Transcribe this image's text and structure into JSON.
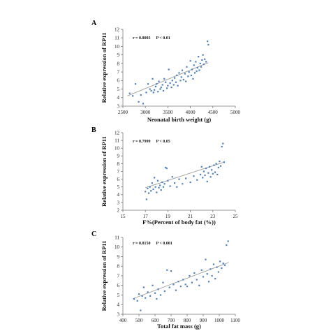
{
  "colors": {
    "point": "#4f81bd",
    "axis": "#7a7a7a",
    "trend": "#9a9a9a"
  },
  "chart_data": [
    {
      "type": "scatter",
      "panel": "A",
      "stats_r": "r = 0.8003",
      "stats_p": "P < 0.01",
      "xlabel": "Neonatal birth weight (g)",
      "ylabel": "Relative expression of RP11",
      "xlim": [
        2500,
        5000
      ],
      "ylim": [
        3,
        12
      ],
      "xticks": [
        "2500",
        "3000",
        "3500",
        "4000",
        "4500",
        "5000"
      ],
      "yticks": [
        "3",
        "4",
        "5",
        "6",
        "7",
        "8",
        "9",
        "10",
        "11",
        "12"
      ],
      "trendline": [
        [
          2600,
          4.2
        ],
        [
          4400,
          8.1
        ]
      ],
      "points": [
        [
          2650,
          4.5
        ],
        [
          2720,
          4.2
        ],
        [
          2780,
          5.6
        ],
        [
          2850,
          3.5
        ],
        [
          2900,
          4.3
        ],
        [
          2950,
          3.3
        ],
        [
          3020,
          4.6
        ],
        [
          3060,
          5.6
        ],
        [
          3100,
          5.0
        ],
        [
          3130,
          4.8
        ],
        [
          3160,
          6.2
        ],
        [
          3180,
          4.6
        ],
        [
          3200,
          4.9
        ],
        [
          3230,
          5.3
        ],
        [
          3250,
          5.6
        ],
        [
          3280,
          4.7
        ],
        [
          3300,
          5.9
        ],
        [
          3330,
          5.0
        ],
        [
          3350,
          5.2
        ],
        [
          3380,
          5.5
        ],
        [
          3400,
          4.8
        ],
        [
          3420,
          6.2
        ],
        [
          3450,
          5.8
        ],
        [
          3480,
          5.1
        ],
        [
          3500,
          5.4
        ],
        [
          3520,
          7.3
        ],
        [
          3550,
          5.7
        ],
        [
          3580,
          5.2
        ],
        [
          3600,
          6.0
        ],
        [
          3630,
          5.5
        ],
        [
          3650,
          6.3
        ],
        [
          3680,
          5.8
        ],
        [
          3700,
          6.6
        ],
        [
          3720,
          5.4
        ],
        [
          3750,
          6.9
        ],
        [
          3780,
          6.0
        ],
        [
          3800,
          6.4
        ],
        [
          3820,
          7.2
        ],
        [
          3850,
          6.1
        ],
        [
          3880,
          6.8
        ],
        [
          3900,
          5.9
        ],
        [
          3920,
          7.6
        ],
        [
          3950,
          6.5
        ],
        [
          3970,
          7.0
        ],
        [
          4000,
          8.3
        ],
        [
          4020,
          6.6
        ],
        [
          4040,
          7.3
        ],
        [
          4060,
          6.2
        ],
        [
          4080,
          7.8
        ],
        [
          4100,
          6.9
        ],
        [
          4120,
          8.2
        ],
        [
          4140,
          7.1
        ],
        [
          4160,
          7.5
        ],
        [
          4180,
          8.8
        ],
        [
          4200,
          7.2
        ],
        [
          4220,
          8.0
        ],
        [
          4240,
          7.6
        ],
        [
          4260,
          8.4
        ],
        [
          4280,
          9.0
        ],
        [
          4300,
          7.9
        ],
        [
          4320,
          8.5
        ],
        [
          4350,
          8.2
        ],
        [
          4380,
          10.6
        ],
        [
          4400,
          10.2
        ]
      ]
    },
    {
      "type": "scatter",
      "panel": "B",
      "stats_r": "r = 0.7999",
      "stats_p": "P < 0.05",
      "xlabel": "F%(Percent of body fat (%))",
      "ylabel": "Relative expression of RP11",
      "xlim": [
        15,
        25
      ],
      "ylim": [
        2,
        12
      ],
      "xticks": [
        "15",
        "17",
        "19",
        "21",
        "23",
        "25"
      ],
      "yticks": [
        "2",
        "3",
        "4",
        "5",
        "6",
        "7",
        "8",
        "9",
        "10",
        "11",
        "12"
      ],
      "trendline": [
        [
          17,
          4.9
        ],
        [
          24,
          8.2
        ]
      ],
      "points": [
        [
          17.0,
          4.4
        ],
        [
          17.1,
          3.4
        ],
        [
          17.2,
          4.8
        ],
        [
          17.3,
          4.2
        ],
        [
          17.4,
          5.0
        ],
        [
          17.5,
          4.5
        ],
        [
          17.6,
          5.5
        ],
        [
          17.7,
          4.7
        ],
        [
          17.8,
          6.2
        ],
        [
          17.9,
          5.0
        ],
        [
          18.0,
          4.3
        ],
        [
          18.1,
          5.8
        ],
        [
          18.2,
          4.9
        ],
        [
          18.3,
          5.2
        ],
        [
          18.4,
          4.6
        ],
        [
          18.5,
          5.6
        ],
        [
          18.6,
          5.0
        ],
        [
          18.7,
          5.4
        ],
        [
          18.8,
          7.5
        ],
        [
          18.9,
          7.4
        ],
        [
          19.0,
          5.8
        ],
        [
          19.2,
          5.1
        ],
        [
          19.4,
          6.3
        ],
        [
          19.6,
          5.5
        ],
        [
          19.8,
          5.0
        ],
        [
          20.0,
          6.0
        ],
        [
          20.3,
          5.4
        ],
        [
          20.6,
          6.1
        ],
        [
          21.0,
          5.6
        ],
        [
          21.3,
          6.4
        ],
        [
          21.6,
          5.9
        ],
        [
          21.9,
          6.6
        ],
        [
          22.0,
          7.6
        ],
        [
          22.1,
          6.2
        ],
        [
          22.2,
          7.0
        ],
        [
          22.3,
          6.5
        ],
        [
          22.4,
          7.4
        ],
        [
          22.5,
          5.7
        ],
        [
          22.6,
          6.8
        ],
        [
          22.7,
          7.6
        ],
        [
          22.8,
          6.3
        ],
        [
          22.9,
          7.2
        ],
        [
          23.0,
          6.7
        ],
        [
          23.1,
          7.8
        ],
        [
          23.2,
          6.9
        ],
        [
          23.3,
          8.0
        ],
        [
          23.4,
          6.6
        ],
        [
          23.5,
          7.5
        ],
        [
          23.6,
          8.3
        ],
        [
          23.7,
          7.7
        ],
        [
          23.8,
          10.2
        ],
        [
          23.9,
          10.6
        ],
        [
          24.0,
          8.2
        ]
      ]
    },
    {
      "type": "scatter",
      "panel": "C",
      "stats_r": "r = 0.8150",
      "stats_p": "P < 0.001",
      "xlabel": "Total fat mass (g)",
      "ylabel": "Relative expression of RP11",
      "xlim": [
        400,
        1100
      ],
      "ylim": [
        3,
        11
      ],
      "xticks": [
        "400",
        "500",
        "600",
        "700",
        "800",
        "900",
        "1000",
        "1100"
      ],
      "yticks": [
        "3",
        "4",
        "5",
        "6",
        "7",
        "8",
        "9",
        "10",
        "11"
      ],
      "trendline": [
        [
          460,
          4.6
        ],
        [
          1060,
          8.4
        ]
      ],
      "points": [
        [
          470,
          4.6
        ],
        [
          490,
          4.4
        ],
        [
          500,
          5.1
        ],
        [
          510,
          3.4
        ],
        [
          520,
          4.9
        ],
        [
          530,
          5.8
        ],
        [
          540,
          4.7
        ],
        [
          555,
          5.3
        ],
        [
          570,
          4.9
        ],
        [
          585,
          6.0
        ],
        [
          600,
          5.2
        ],
        [
          610,
          4.6
        ],
        [
          620,
          5.6
        ],
        [
          635,
          5.0
        ],
        [
          650,
          6.3
        ],
        [
          660,
          5.4
        ],
        [
          675,
          7.6
        ],
        [
          690,
          5.8
        ],
        [
          700,
          7.5
        ],
        [
          715,
          6.1
        ],
        [
          730,
          5.5
        ],
        [
          745,
          6.4
        ],
        [
          760,
          5.9
        ],
        [
          775,
          6.6
        ],
        [
          790,
          6.1
        ],
        [
          800,
          5.9
        ],
        [
          815,
          7.0
        ],
        [
          830,
          6.3
        ],
        [
          845,
          7.3
        ],
        [
          860,
          6.6
        ],
        [
          875,
          6.0
        ],
        [
          890,
          7.6
        ],
        [
          900,
          6.9
        ],
        [
          915,
          8.7
        ],
        [
          925,
          7.2
        ],
        [
          935,
          6.4
        ],
        [
          945,
          7.7
        ],
        [
          955,
          7.0
        ],
        [
          965,
          8.2
        ],
        [
          975,
          6.7
        ],
        [
          985,
          7.9
        ],
        [
          995,
          7.4
        ],
        [
          1005,
          8.5
        ],
        [
          1015,
          7.8
        ],
        [
          1025,
          8.3
        ],
        [
          1035,
          8.1
        ],
        [
          1045,
          10.2
        ],
        [
          1055,
          10.6
        ]
      ]
    }
  ]
}
